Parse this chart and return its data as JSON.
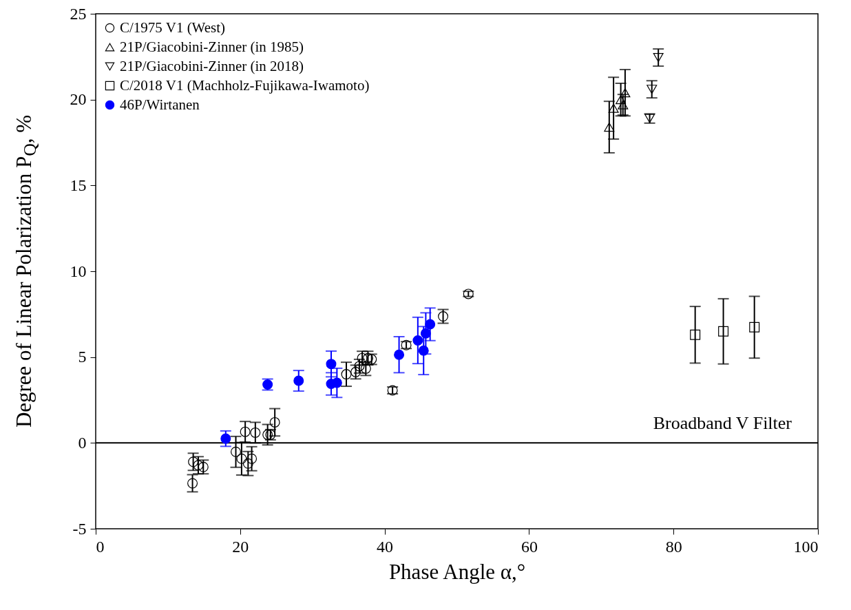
{
  "chart_data": {
    "type": "scatter",
    "xlabel": "Phase Angle α,°",
    "ylabel": "Degree of Linear Polarization P$_{Q}$, %",
    "xlim": [
      0,
      100
    ],
    "ylim": [
      -5,
      25
    ],
    "xticks": [
      0,
      20,
      40,
      60,
      80,
      100
    ],
    "yticks": [
      -5,
      0,
      5,
      10,
      15,
      20,
      25
    ],
    "grid": false,
    "legend": "top left",
    "annotations": [
      "Broadband V Filter"
    ],
    "ref_lines": [
      {
        "axis": "y",
        "value": 0,
        "color": "#000000"
      }
    ],
    "series": [
      {
        "name": "C/1975 V1 (West)",
        "color": "#000000",
        "marker": "circle",
        "x": [
          13.5,
          14.2,
          14.9,
          13.4,
          19.4,
          20.2,
          20.7,
          21.1,
          21.6,
          22.1,
          23.8,
          24.2,
          24.8,
          34.7,
          36.0,
          36.5,
          36.9,
          37.4,
          37.7,
          38.2,
          41.1,
          43.0,
          48.1,
          51.6
        ],
        "values": [
          -1.1,
          -1.3,
          -1.4,
          -2.35,
          -0.52,
          -0.92,
          0.65,
          -1.2,
          -0.92,
          0.6,
          0.48,
          0.48,
          1.2,
          4.0,
          4.13,
          4.47,
          4.94,
          4.33,
          4.94,
          4.87,
          3.06,
          5.7,
          7.37,
          8.68
        ],
        "errors": [
          0.5,
          0.5,
          0.4,
          0.5,
          0.9,
          0.95,
          0.6,
          0.7,
          0.7,
          0.6,
          0.6,
          0.3,
          0.8,
          0.7,
          0.4,
          0.4,
          0.4,
          0.4,
          0.4,
          0.3,
          0.2,
          0.2,
          0.4,
          0.15
        ]
      },
      {
        "name": "21P/Giacobini-Zinner (in 1985)",
        "color": "#000000",
        "marker": "triangle",
        "x": [
          71.1,
          71.7,
          72.7,
          73.0,
          73.3
        ],
        "values": [
          18.4,
          19.5,
          20.0,
          19.7,
          20.4
        ],
        "errors": [
          1.5,
          1.8,
          0.95,
          0.6,
          1.35
        ]
      },
      {
        "name": "21P/Giacobini-Zinner (in 2018)",
        "color": "#000000",
        "marker": "triangle-down",
        "x": [
          76.7,
          77.0,
          77.9
        ],
        "values": [
          18.9,
          20.6,
          22.45
        ],
        "errors": [
          0.27,
          0.5,
          0.5
        ]
      },
      {
        "name": "C/2018 V1 (Machholz-Fujikawa-Iwamoto)",
        "color": "#000000",
        "marker": "square",
        "x": [
          83.0,
          86.9,
          91.2
        ],
        "values": [
          6.3,
          6.5,
          6.74
        ],
        "errors": [
          1.65,
          1.9,
          1.8
        ]
      },
      {
        "name": "46P/Wirtanen",
        "color": "#0000ff",
        "marker": "circle",
        "x": [
          18.0,
          23.8,
          28.1,
          32.6,
          32.6,
          33.4,
          42.0,
          44.6,
          45.4,
          45.7,
          46.3
        ],
        "values": [
          0.25,
          3.4,
          3.62,
          4.6,
          3.44,
          3.5,
          5.14,
          5.97,
          5.38,
          6.38,
          6.91
        ],
        "errors": [
          0.45,
          0.32,
          0.6,
          0.75,
          0.65,
          0.85,
          1.05,
          1.35,
          1.4,
          1.2,
          0.95
        ]
      }
    ]
  }
}
